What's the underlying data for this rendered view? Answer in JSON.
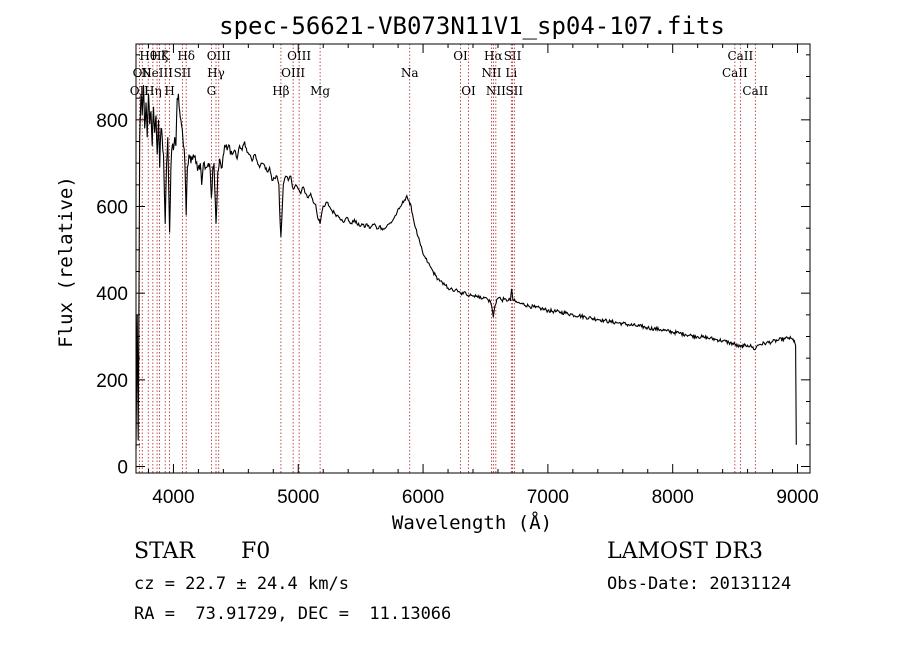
{
  "chart_data": {
    "type": "line",
    "title": "spec-56621-VB073N11V1_sp04-107.fits",
    "xlabel": "Wavelength (Å)",
    "ylabel": "Flux (relative)",
    "xlim": [
      3700,
      9100
    ],
    "ylim": [
      -15,
      975
    ],
    "xticks": [
      4000,
      5000,
      6000,
      7000,
      8000,
      9000
    ],
    "yticks": [
      0,
      200,
      400,
      600,
      800
    ],
    "xtick_labels": [
      "4000",
      "5000",
      "6000",
      "7000",
      "8000",
      "9000"
    ],
    "ytick_labels": [
      "0",
      "200",
      "400",
      "600",
      "800"
    ],
    "line_markers": [
      {
        "wave": 3727,
        "label": "OII",
        "row": 2
      },
      {
        "wave": 3750,
        "label": "OII",
        "row": 1
      },
      {
        "wave": 3798,
        "label": "Hθ",
        "row": 0
      },
      {
        "wave": 3835,
        "label": "Hη",
        "row": 2
      },
      {
        "wave": 3869,
        "label": "NeIII",
        "row": 1
      },
      {
        "wave": 3889,
        "label": "Hζ",
        "row": 0
      },
      {
        "wave": 3934,
        "label": "K",
        "row": 0
      },
      {
        "wave": 3969,
        "label": "H",
        "row": 2
      },
      {
        "wave": 4072,
        "label": "SII",
        "row": 1
      },
      {
        "wave": 4102,
        "label": "Hδ",
        "row": 0
      },
      {
        "wave": 4304,
        "label": "G",
        "row": 2
      },
      {
        "wave": 4341,
        "label": "Hγ",
        "row": 1
      },
      {
        "wave": 4363,
        "label": "OIII",
        "row": 0
      },
      {
        "wave": 4861,
        "label": "Hβ",
        "row": 2
      },
      {
        "wave": 4959,
        "label": "OIII",
        "row": 1
      },
      {
        "wave": 5007,
        "label": "OIII",
        "row": 0
      },
      {
        "wave": 5175,
        "label": "Mg",
        "row": 2
      },
      {
        "wave": 5893,
        "label": "Na",
        "row": 1
      },
      {
        "wave": 6300,
        "label": "OI",
        "row": 0
      },
      {
        "wave": 6364,
        "label": "OI",
        "row": 2
      },
      {
        "wave": 6548,
        "label": "NII",
        "row": 1
      },
      {
        "wave": 6563,
        "label": "Hα",
        "row": 0
      },
      {
        "wave": 6583,
        "label": "NII",
        "row": 2
      },
      {
        "wave": 6707,
        "label": "Li",
        "row": 1
      },
      {
        "wave": 6717,
        "label": "SII",
        "row": 0
      },
      {
        "wave": 6731,
        "label": "SII",
        "row": 2
      },
      {
        "wave": 8498,
        "label": "CaII",
        "row": 1
      },
      {
        "wave": 8542,
        "label": "CaII",
        "row": 0
      },
      {
        "wave": 8662,
        "label": "CaII",
        "row": 2
      }
    ],
    "series": [
      {
        "name": "flux",
        "points": [
          [
            3700,
            40
          ],
          [
            3710,
            350
          ],
          [
            3718,
            60
          ],
          [
            3730,
            760
          ],
          [
            3740,
            860
          ],
          [
            3750,
            810
          ],
          [
            3760,
            880
          ],
          [
            3770,
            780
          ],
          [
            3780,
            840
          ],
          [
            3790,
            760
          ],
          [
            3800,
            860
          ],
          [
            3810,
            790
          ],
          [
            3820,
            820
          ],
          [
            3830,
            740
          ],
          [
            3840,
            830
          ],
          [
            3850,
            770
          ],
          [
            3860,
            810
          ],
          [
            3870,
            720
          ],
          [
            3880,
            800
          ],
          [
            3890,
            690
          ],
          [
            3900,
            780
          ],
          [
            3910,
            760
          ],
          [
            3920,
            720
          ],
          [
            3934,
            560
          ],
          [
            3945,
            700
          ],
          [
            3955,
            760
          ],
          [
            3969,
            540
          ],
          [
            3980,
            690
          ],
          [
            3990,
            740
          ],
          [
            4000,
            730
          ],
          [
            4010,
            760
          ],
          [
            4020,
            740
          ],
          [
            4030,
            850
          ],
          [
            4040,
            860
          ],
          [
            4050,
            820
          ],
          [
            4060,
            800
          ],
          [
            4070,
            780
          ],
          [
            4080,
            740
          ],
          [
            4092,
            700
          ],
          [
            4102,
            580
          ],
          [
            4112,
            690
          ],
          [
            4125,
            720
          ],
          [
            4140,
            700
          ],
          [
            4160,
            720
          ],
          [
            4180,
            700
          ],
          [
            4200,
            690
          ],
          [
            4215,
            700
          ],
          [
            4226,
            650
          ],
          [
            4240,
            700
          ],
          [
            4260,
            690
          ],
          [
            4280,
            700
          ],
          [
            4295,
            680
          ],
          [
            4304,
            620
          ],
          [
            4315,
            690
          ],
          [
            4325,
            700
          ],
          [
            4341,
            560
          ],
          [
            4355,
            680
          ],
          [
            4370,
            710
          ],
          [
            4390,
            690
          ],
          [
            4410,
            740
          ],
          [
            4430,
            730
          ],
          [
            4450,
            740
          ],
          [
            4470,
            720
          ],
          [
            4490,
            730
          ],
          [
            4510,
            710
          ],
          [
            4530,
            740
          ],
          [
            4550,
            730
          ],
          [
            4570,
            750
          ],
          [
            4590,
            725
          ],
          [
            4610,
            720
          ],
          [
            4630,
            705
          ],
          [
            4650,
            720
          ],
          [
            4670,
            705
          ],
          [
            4690,
            690
          ],
          [
            4710,
            700
          ],
          [
            4730,
            695
          ],
          [
            4750,
            680
          ],
          [
            4770,
            690
          ],
          [
            4790,
            660
          ],
          [
            4810,
            665
          ],
          [
            4830,
            670
          ],
          [
            4845,
            650
          ],
          [
            4855,
            560
          ],
          [
            4861,
            530
          ],
          [
            4868,
            570
          ],
          [
            4880,
            650
          ],
          [
            4900,
            670
          ],
          [
            4920,
            660
          ],
          [
            4940,
            670
          ],
          [
            4960,
            640
          ],
          [
            4980,
            650
          ],
          [
            5000,
            640
          ],
          [
            5020,
            630
          ],
          [
            5040,
            645
          ],
          [
            5060,
            630
          ],
          [
            5080,
            620
          ],
          [
            5100,
            630
          ],
          [
            5120,
            610
          ],
          [
            5140,
            605
          ],
          [
            5155,
            575
          ],
          [
            5167,
            570
          ],
          [
            5175,
            560
          ],
          [
            5183,
            575
          ],
          [
            5195,
            595
          ],
          [
            5210,
            600
          ],
          [
            5230,
            610
          ],
          [
            5250,
            600
          ],
          [
            5270,
            590
          ],
          [
            5290,
            585
          ],
          [
            5310,
            580
          ],
          [
            5330,
            575
          ],
          [
            5350,
            570
          ],
          [
            5370,
            565
          ],
          [
            5390,
            575
          ],
          [
            5410,
            565
          ],
          [
            5430,
            560
          ],
          [
            5450,
            570
          ],
          [
            5470,
            560
          ],
          [
            5490,
            555
          ],
          [
            5510,
            560
          ],
          [
            5530,
            552
          ],
          [
            5550,
            560
          ],
          [
            5570,
            550
          ],
          [
            5590,
            555
          ],
          [
            5610,
            560
          ],
          [
            5630,
            548
          ],
          [
            5650,
            555
          ],
          [
            5670,
            550
          ],
          [
            5690,
            548
          ],
          [
            5710,
            555
          ],
          [
            5730,
            560
          ],
          [
            5750,
            565
          ],
          [
            5770,
            575
          ],
          [
            5790,
            585
          ],
          [
            5810,
            595
          ],
          [
            5830,
            605
          ],
          [
            5850,
            615
          ],
          [
            5870,
            625
          ],
          [
            5880,
            615
          ],
          [
            5893,
            605
          ],
          [
            5905,
            600
          ],
          [
            5920,
            575
          ],
          [
            5940,
            550
          ],
          [
            5960,
            530
          ],
          [
            5980,
            510
          ],
          [
            6000,
            490
          ],
          [
            6020,
            480
          ],
          [
            6040,
            470
          ],
          [
            6060,
            460
          ],
          [
            6080,
            450
          ],
          [
            6100,
            440
          ],
          [
            6120,
            433
          ],
          [
            6140,
            428
          ],
          [
            6160,
            420
          ],
          [
            6180,
            418
          ],
          [
            6200,
            412
          ],
          [
            6220,
            410
          ],
          [
            6240,
            405
          ],
          [
            6260,
            408
          ],
          [
            6280,
            403
          ],
          [
            6300,
            400
          ],
          [
            6320,
            398
          ],
          [
            6340,
            402
          ],
          [
            6360,
            395
          ],
          [
            6380,
            398
          ],
          [
            6400,
            393
          ],
          [
            6420,
            396
          ],
          [
            6440,
            390
          ],
          [
            6460,
            392
          ],
          [
            6480,
            388
          ],
          [
            6500,
            390
          ],
          [
            6520,
            385
          ],
          [
            6540,
            380
          ],
          [
            6550,
            370
          ],
          [
            6563,
            345
          ],
          [
            6575,
            370
          ],
          [
            6590,
            385
          ],
          [
            6610,
            390
          ],
          [
            6630,
            384
          ],
          [
            6650,
            386
          ],
          [
            6670,
            382
          ],
          [
            6690,
            388
          ],
          [
            6700,
            382
          ],
          [
            6710,
            410
          ],
          [
            6720,
            385
          ],
          [
            6740,
            380
          ],
          [
            6760,
            378
          ],
          [
            6780,
            376
          ],
          [
            6800,
            375
          ],
          [
            6850,
            370
          ],
          [
            6900,
            367
          ],
          [
            6950,
            364
          ],
          [
            7000,
            360
          ],
          [
            7050,
            358
          ],
          [
            7100,
            356
          ],
          [
            7150,
            354
          ],
          [
            7200,
            350
          ],
          [
            7250,
            348
          ],
          [
            7300,
            345
          ],
          [
            7350,
            342
          ],
          [
            7400,
            340
          ],
          [
            7450,
            337
          ],
          [
            7500,
            334
          ],
          [
            7550,
            332
          ],
          [
            7600,
            330
          ],
          [
            7650,
            327
          ],
          [
            7700,
            325
          ],
          [
            7750,
            323
          ],
          [
            7800,
            320
          ],
          [
            7850,
            318
          ],
          [
            7900,
            316
          ],
          [
            7950,
            313
          ],
          [
            8000,
            310
          ],
          [
            8050,
            308
          ],
          [
            8100,
            305
          ],
          [
            8150,
            302
          ],
          [
            8200,
            300
          ],
          [
            8250,
            298
          ],
          [
            8300,
            296
          ],
          [
            8350,
            293
          ],
          [
            8400,
            290
          ],
          [
            8450,
            286
          ],
          [
            8498,
            282
          ],
          [
            8520,
            278
          ],
          [
            8542,
            276
          ],
          [
            8570,
            278
          ],
          [
            8600,
            280
          ],
          [
            8630,
            277
          ],
          [
            8662,
            270
          ],
          [
            8680,
            280
          ],
          [
            8700,
            282
          ],
          [
            8750,
            285
          ],
          [
            8800,
            288
          ],
          [
            8850,
            292
          ],
          [
            8900,
            295
          ],
          [
            8930,
            297
          ],
          [
            8960,
            293
          ],
          [
            8975,
            290
          ],
          [
            8985,
            280
          ],
          [
            8990,
            50
          ]
        ]
      }
    ]
  },
  "info": {
    "object_class": "STAR",
    "subclass": "F0",
    "survey": "LAMOST DR3",
    "cz": "cz = 22.7 ± 24.4 km/s",
    "obs_date": "Obs-Date: 20131124",
    "coords": "RA =  73.91729, DEC =  11.13066"
  }
}
